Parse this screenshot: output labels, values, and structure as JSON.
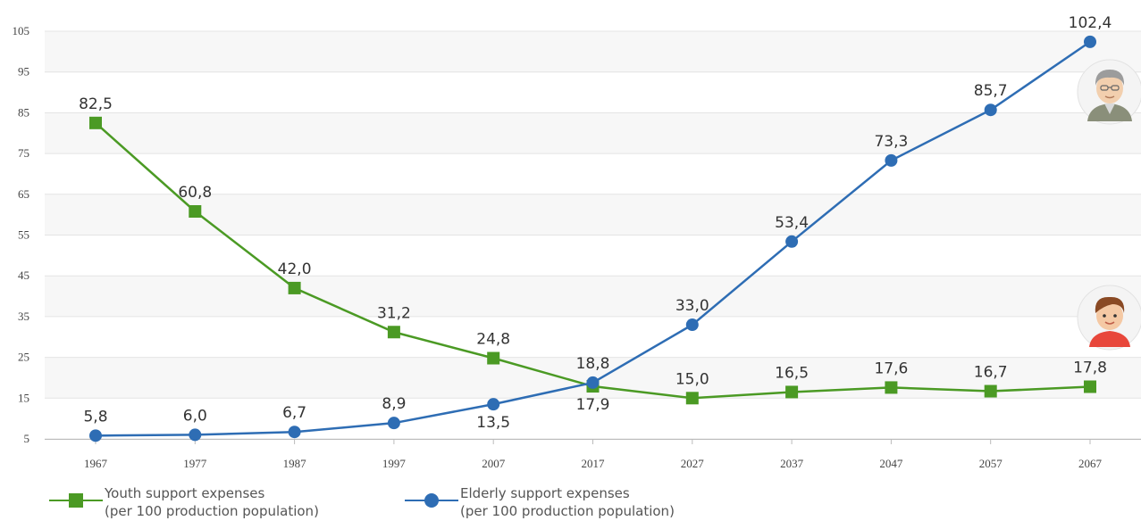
{
  "chart_data": {
    "type": "line",
    "title": "",
    "xlabel": "",
    "ylabel": "",
    "categories": [
      "1967",
      "1977",
      "1987",
      "1997",
      "2007",
      "2017",
      "2027",
      "2037",
      "2047",
      "2057",
      "2067"
    ],
    "yticks": [
      5,
      15,
      25,
      35,
      45,
      55,
      65,
      75,
      85,
      95,
      105
    ],
    "ylim": [
      5,
      105
    ],
    "grid": true,
    "legend_position": "bottom-left",
    "series": [
      {
        "name": "Youth support expenses",
        "name_line2": "(per 100 production population)",
        "color": "#4b9a24",
        "marker": "square",
        "values": [
          82.5,
          60.8,
          42.0,
          31.2,
          24.8,
          17.9,
          15.0,
          16.5,
          17.6,
          16.7,
          17.8
        ],
        "labels": [
          "82,5",
          "60,8",
          "42,0",
          "31,2",
          "24,8",
          "17,9",
          "15,0",
          "16,5",
          "17,6",
          "16,7",
          "17,8"
        ]
      },
      {
        "name": "Elderly support expenses",
        "name_line2": "(per 100 production population)",
        "color": "#2e6db4",
        "marker": "circle",
        "values": [
          5.8,
          6.0,
          6.7,
          8.9,
          13.5,
          18.8,
          33.0,
          53.4,
          73.3,
          85.7,
          102.4
        ],
        "labels": [
          "5,8",
          "6,0",
          "6,7",
          "8,9",
          "13,5",
          "18,8",
          "33,0",
          "53,4",
          "73,3",
          "85,7",
          "102,4"
        ]
      }
    ]
  },
  "icons": {
    "elderly": "elderly-man-avatar-icon",
    "youth": "child-avatar-icon"
  }
}
